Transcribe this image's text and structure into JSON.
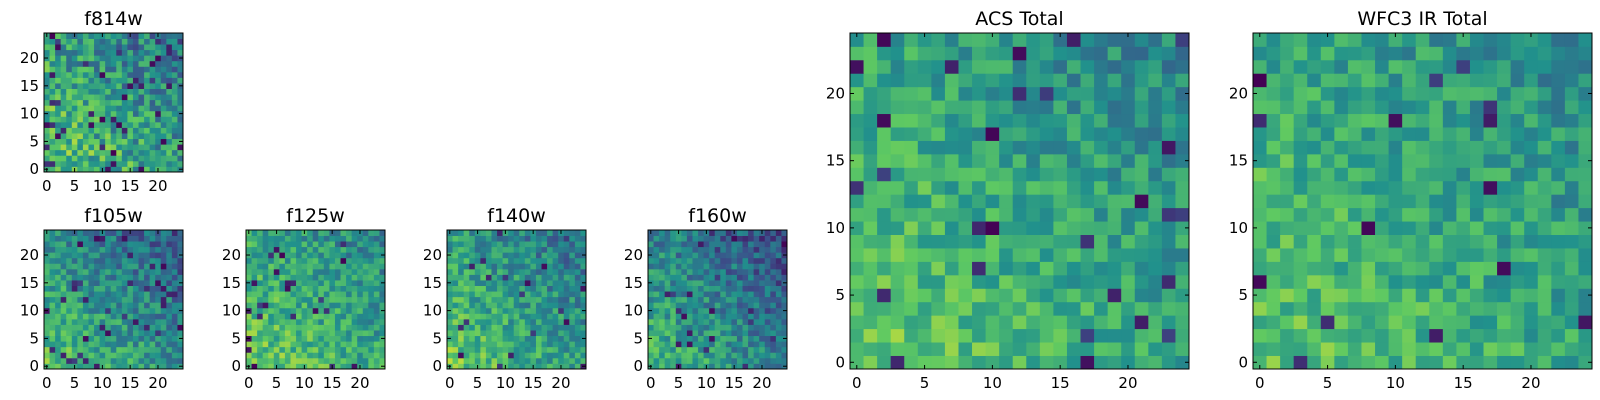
{
  "colormap": {
    "name": "viridis",
    "stops": [
      "#440154",
      "#3b528b",
      "#21918c",
      "#5ec962",
      "#fde725"
    ]
  },
  "chart_data": [
    {
      "type": "heatmap",
      "title": "f814w",
      "width": 25,
      "height": 25,
      "x_ticks": [
        0,
        5,
        10,
        15,
        20
      ],
      "y_ticks": [
        0,
        5,
        10,
        15,
        20
      ],
      "xlim": [
        -0.5,
        24.5
      ],
      "ylim": [
        -0.5,
        24.5
      ],
      "pattern": {
        "seed": 11,
        "base": 0.55,
        "gradient": 0.35,
        "noise": 0.45,
        "dark_fraction": 0.06
      }
    },
    {
      "type": "heatmap",
      "title": "f105w",
      "width": 25,
      "height": 25,
      "x_ticks": [
        0,
        5,
        10,
        15,
        20
      ],
      "y_ticks": [
        0,
        5,
        10,
        15,
        20
      ],
      "xlim": [
        -0.5,
        24.5
      ],
      "ylim": [
        -0.5,
        24.5
      ],
      "pattern": {
        "seed": 23,
        "base": 0.5,
        "gradient": 0.45,
        "noise": 0.35,
        "dark_fraction": 0.05
      }
    },
    {
      "type": "heatmap",
      "title": "f125w",
      "width": 25,
      "height": 25,
      "x_ticks": [
        0,
        5,
        10,
        15,
        20
      ],
      "y_ticks": [
        0,
        5,
        10,
        15,
        20
      ],
      "xlim": [
        -0.5,
        24.5
      ],
      "ylim": [
        -0.5,
        24.5
      ],
      "pattern": {
        "seed": 37,
        "base": 0.6,
        "gradient": 0.3,
        "noise": 0.35,
        "dark_fraction": 0.04
      }
    },
    {
      "type": "heatmap",
      "title": "f140w",
      "width": 25,
      "height": 25,
      "x_ticks": [
        0,
        5,
        10,
        15,
        20
      ],
      "y_ticks": [
        0,
        5,
        10,
        15,
        20
      ],
      "xlim": [
        -0.5,
        24.5
      ],
      "ylim": [
        -0.5,
        24.5
      ],
      "pattern": {
        "seed": 41,
        "base": 0.55,
        "gradient": 0.4,
        "noise": 0.35,
        "dark_fraction": 0.04
      }
    },
    {
      "type": "heatmap",
      "title": "f160w",
      "width": 25,
      "height": 25,
      "x_ticks": [
        0,
        5,
        10,
        15,
        20
      ],
      "y_ticks": [
        0,
        5,
        10,
        15,
        20
      ],
      "xlim": [
        -0.5,
        24.5
      ],
      "ylim": [
        -0.5,
        24.5
      ],
      "pattern": {
        "seed": 53,
        "base": 0.45,
        "gradient": 0.45,
        "noise": 0.35,
        "dark_fraction": 0.05
      }
    },
    {
      "type": "heatmap",
      "title": "ACS Total",
      "width": 25,
      "height": 25,
      "x_ticks": [
        0,
        5,
        10,
        15,
        20
      ],
      "y_ticks": [
        0,
        5,
        10,
        15,
        20
      ],
      "xlim": [
        -0.5,
        24.5
      ],
      "ylim": [
        -0.5,
        24.5
      ],
      "pattern": {
        "seed": 67,
        "base": 0.6,
        "gradient": 0.3,
        "noise": 0.3,
        "dark_fraction": 0.04
      }
    },
    {
      "type": "heatmap",
      "title": "WFC3 IR Total",
      "width": 25,
      "height": 25,
      "x_ticks": [
        0,
        5,
        10,
        15,
        20
      ],
      "y_ticks": [
        0,
        5,
        10,
        15,
        20
      ],
      "xlim": [
        -0.5,
        24.5
      ],
      "ylim": [
        -0.5,
        24.5
      ],
      "pattern": {
        "seed": 79,
        "base": 0.6,
        "gradient": 0.25,
        "noise": 0.3,
        "dark_fraction": 0.03
      }
    }
  ]
}
